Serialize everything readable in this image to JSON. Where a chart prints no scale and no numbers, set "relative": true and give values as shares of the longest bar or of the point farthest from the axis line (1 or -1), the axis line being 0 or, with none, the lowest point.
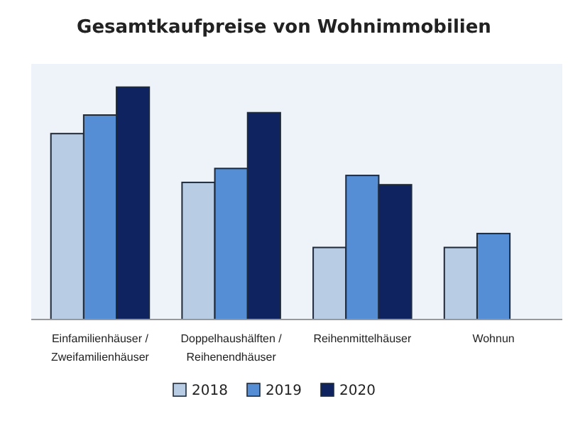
{
  "chart_data": {
    "type": "bar",
    "title": "Gesamtkaufpreise von Wohnimmobilien",
    "relative": true,
    "categories": [
      "Einfamilienhäuser / Zweifamilienhäuser",
      "Doppelhaushälften / Reihenendhäuser",
      "Reihenmittelhäuser",
      "Wohnun"
    ],
    "series": [
      {
        "name": "2018",
        "color": "#b8cce4",
        "values": [
          0.8,
          0.59,
          0.31,
          0.31
        ]
      },
      {
        "name": "2019",
        "color": "#558ed5",
        "values": [
          0.88,
          0.65,
          0.62,
          0.37
        ]
      },
      {
        "name": "2020",
        "color": "#0f2360",
        "values": [
          1,
          0.89,
          0.58,
          null
        ]
      }
    ],
    "legend": "bottom"
  }
}
